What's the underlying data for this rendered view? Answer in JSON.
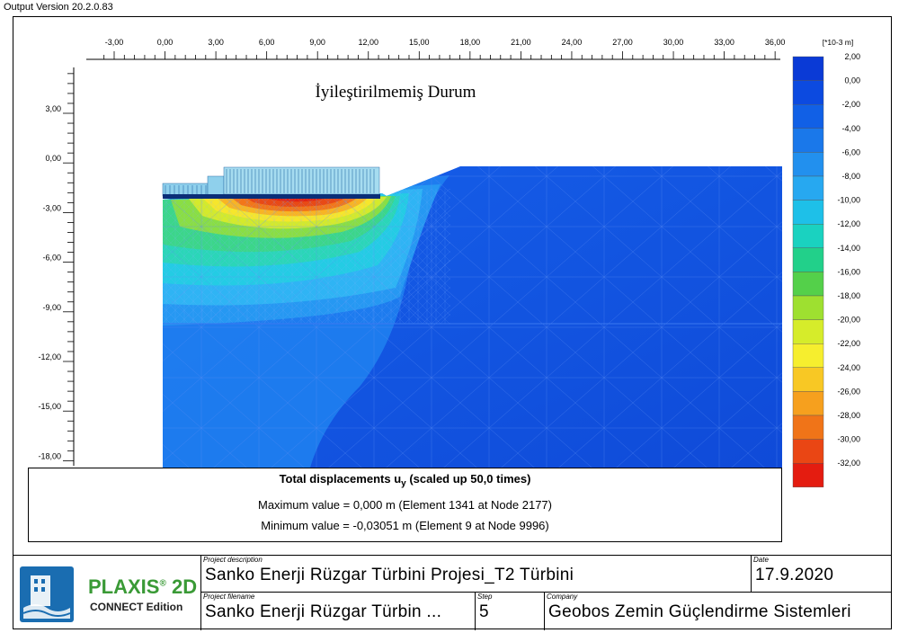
{
  "app": {
    "version_label": "Output Version 20.2.0.83"
  },
  "plot": {
    "title": "İyileştirilmemiş Durum",
    "x_ticks": [
      "-3,00",
      "0,00",
      "3,00",
      "6,00",
      "9,00",
      "12,00",
      "15,00",
      "18,00",
      "21,00",
      "24,00",
      "27,00",
      "30,00",
      "33,00",
      "36,00"
    ],
    "y_ticks": [
      "3,00",
      "0,00",
      "-3,00",
      "-6,00",
      "-9,00",
      "-12,00",
      "-15,00",
      "-18,00"
    ]
  },
  "legend": {
    "unit": "[*10-3 m]",
    "labels": [
      "2,00",
      "0,00",
      "-2,00",
      "-4,00",
      "-6,00",
      "-8,00",
      "-10,00",
      "-12,00",
      "-14,00",
      "-16,00",
      "-18,00",
      "-20,00",
      "-22,00",
      "-24,00",
      "-26,00",
      "-28,00",
      "-30,00",
      "-32,00"
    ],
    "colors": [
      "#0a3ad6",
      "#0c4ae0",
      "#1160e6",
      "#1a78ea",
      "#2290ee",
      "#27a8f0",
      "#1ec0e8",
      "#1ad2c0",
      "#22d08a",
      "#54d04a",
      "#9ee030",
      "#d6ec2a",
      "#f6ee2e",
      "#f8c824",
      "#f6a01e",
      "#f07418",
      "#ea4614",
      "#e41c10"
    ]
  },
  "results": {
    "title_main": "Total displacements u",
    "title_sub": "y",
    "title_rest": " (scaled up 50,0 times)",
    "max_line": "Maximum value = 0,000 m (Element 1341 at Node 2177)",
    "min_line": "Minimum value = -0,03051 m (Element 9 at Node 9996)"
  },
  "footer": {
    "brand": "PLAXIS",
    "brand_mark": "®",
    "brand_suffix": " 2D",
    "edition": "CONNECT Edition",
    "project_description_label": "Project description",
    "project_description": "Sanko Enerji Rüzgar Türbini Projesi_T2 Türbini",
    "date_label": "Date",
    "date": "17.9.2020",
    "project_filename_label": "Project filename",
    "project_filename": "Sanko Enerji Rüzgar Türbin ...",
    "step_label": "Step",
    "step": "5",
    "company_label": "Company",
    "company": "Geobos Zemin Güçlendirme Sistemleri"
  }
}
